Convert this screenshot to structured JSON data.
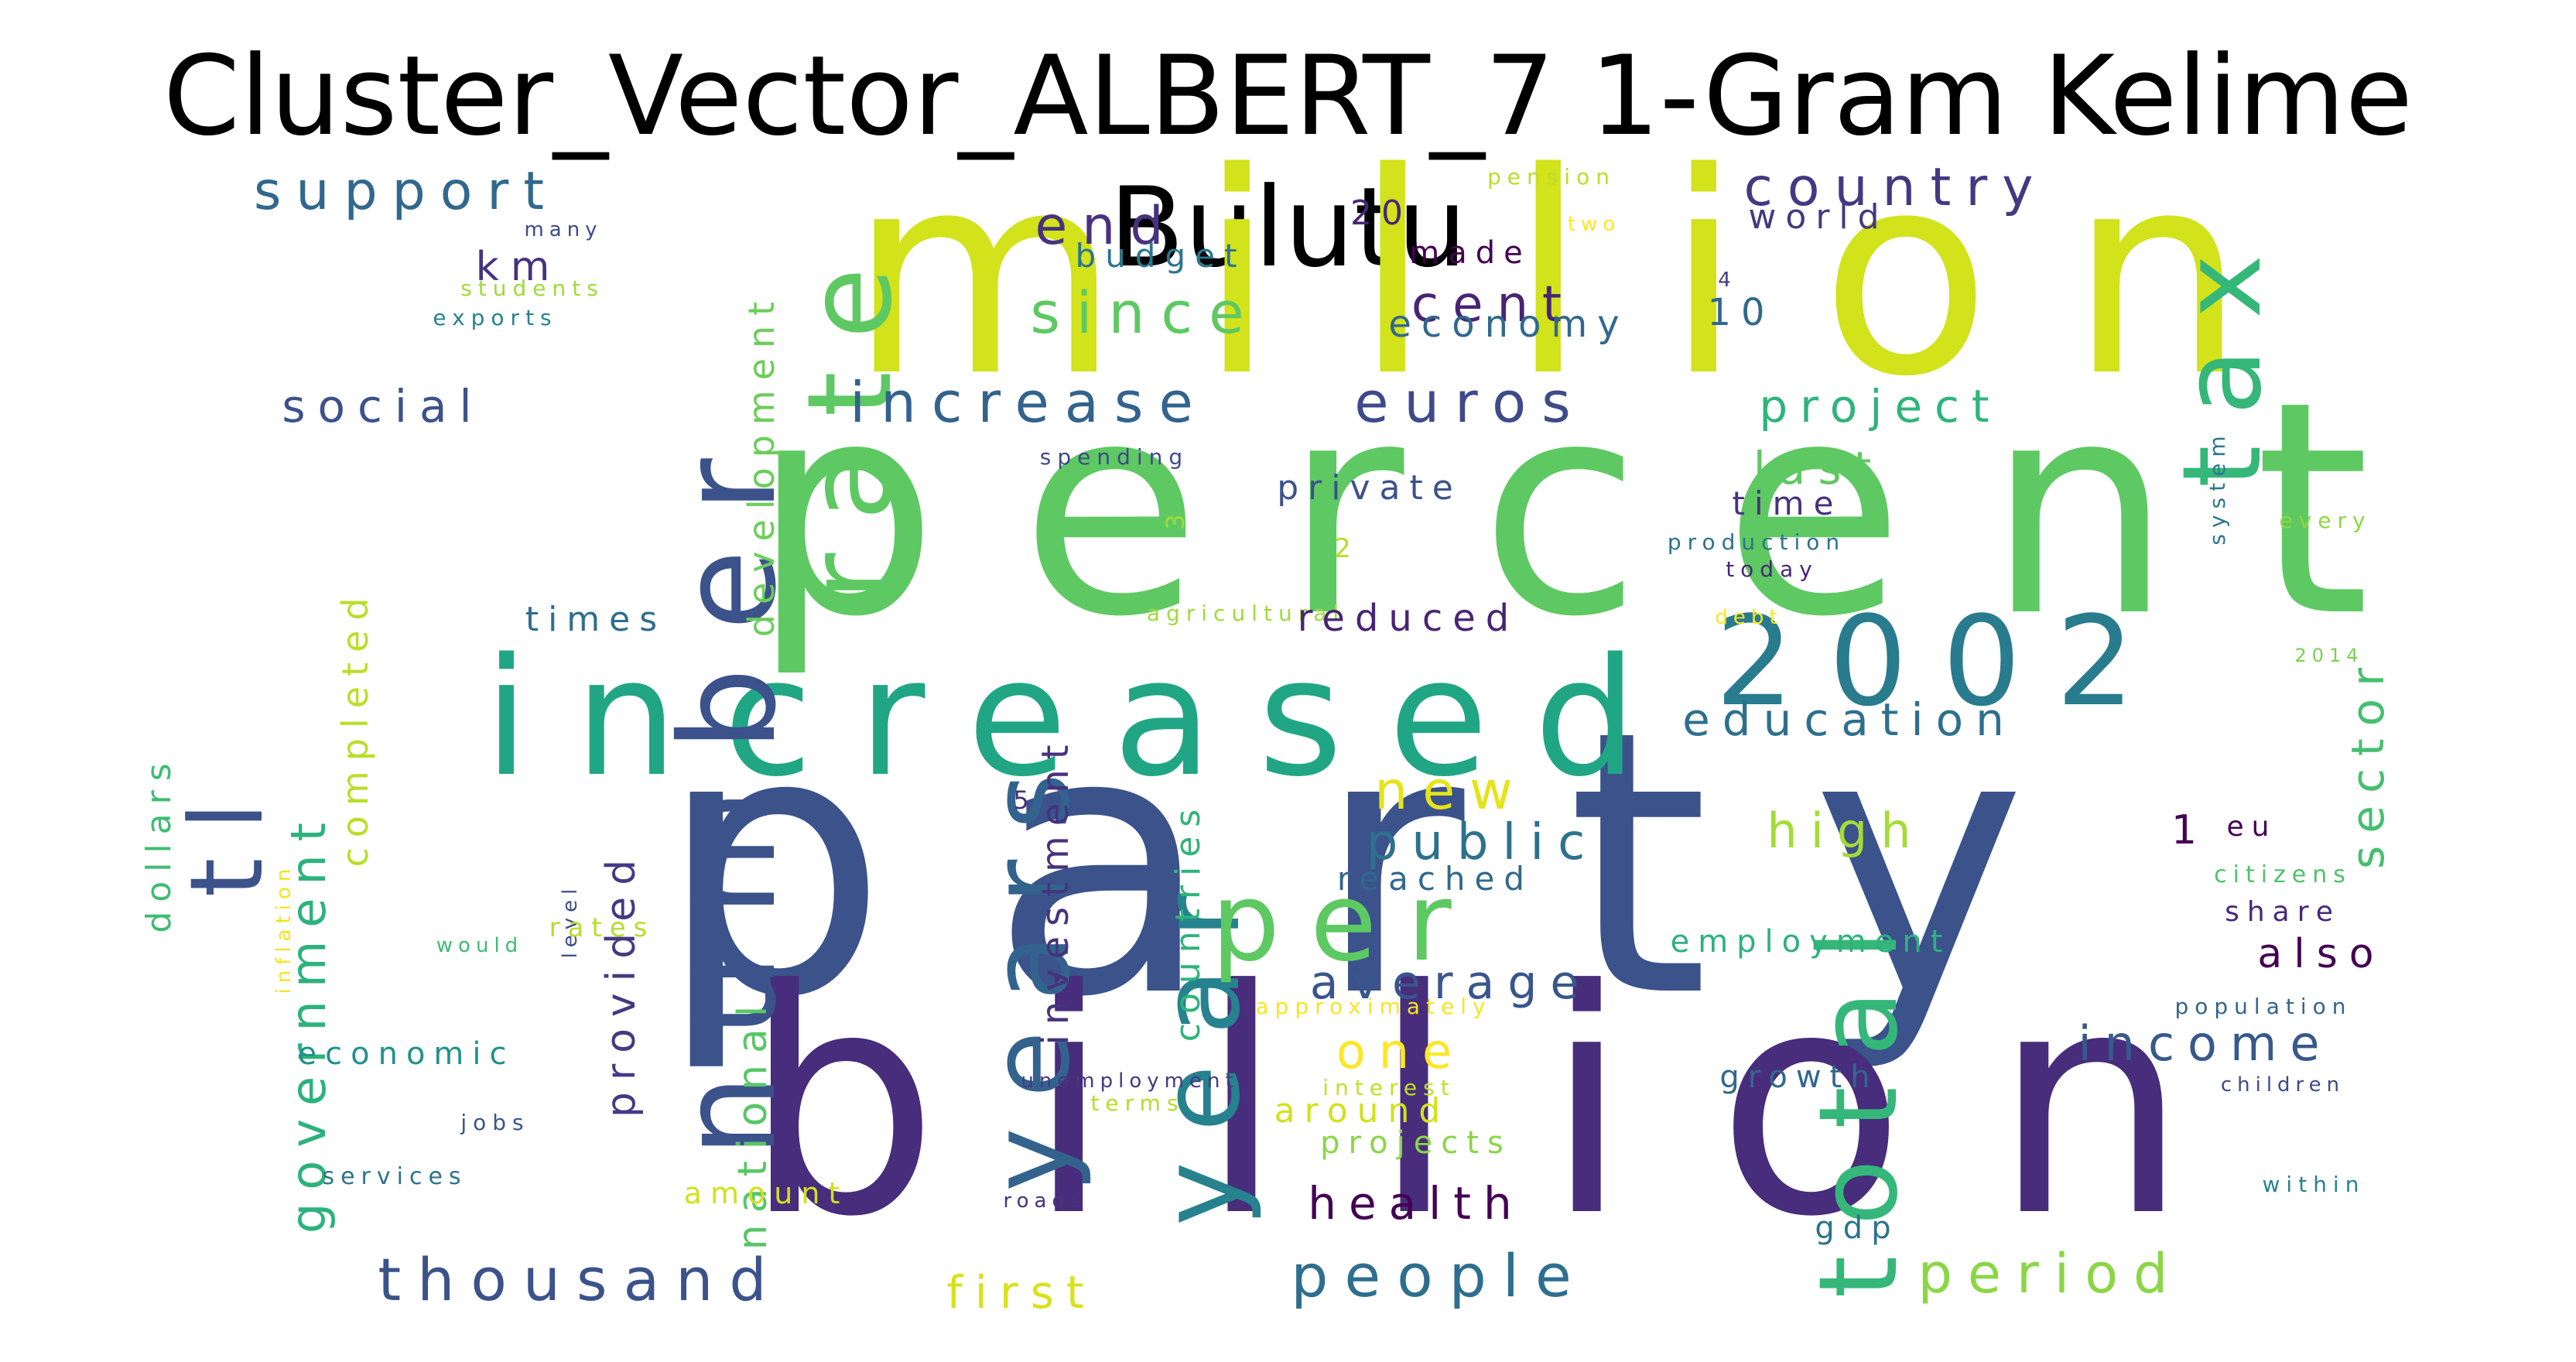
{
  "title": "Cluster_Vector_ALBERT_7 1-Gram Kelime Bulutu",
  "words": [
    {
      "text": "million",
      "color": "#d2e21b"
    },
    {
      "text": "percent",
      "color": "#5ec962"
    },
    {
      "text": "party",
      "color": "#3b528b"
    },
    {
      "text": "billion",
      "color": "#472d7b"
    },
    {
      "text": "increased",
      "color": "#21a685"
    },
    {
      "text": "2002",
      "color": "#287c8e"
    },
    {
      "text": "number",
      "color": "#3b528b"
    },
    {
      "text": "rate",
      "color": "#5ec962"
    },
    {
      "text": "years",
      "color": "#33638d"
    },
    {
      "text": "year",
      "color": "#26828e"
    },
    {
      "text": "per",
      "color": "#5ec962"
    },
    {
      "text": "total",
      "color": "#35b779"
    },
    {
      "text": "tax",
      "color": "#35b779"
    },
    {
      "text": "tl",
      "color": "#3b528b"
    },
    {
      "text": "support",
      "color": "#31688e"
    },
    {
      "text": "end",
      "color": "#46327e"
    },
    {
      "text": "km",
      "color": "#46327e"
    },
    {
      "text": "budget",
      "color": "#2a768e"
    },
    {
      "text": "since",
      "color": "#5ec962"
    },
    {
      "text": "cent",
      "color": "#482475"
    },
    {
      "text": "economy",
      "color": "#31688e"
    },
    {
      "text": "country",
      "color": "#453882"
    },
    {
      "text": "world",
      "color": "#453882"
    },
    {
      "text": "20",
      "color": "#482878"
    },
    {
      "text": "10",
      "color": "#31688e"
    },
    {
      "text": "made",
      "color": "#440154"
    },
    {
      "text": "many",
      "color": "#3e4a89"
    },
    {
      "text": "two",
      "color": "#fde725"
    },
    {
      "text": "pension",
      "color": "#b8de29"
    },
    {
      "text": "students",
      "color": "#a0da39"
    },
    {
      "text": "exports",
      "color": "#26828e"
    },
    {
      "text": "4",
      "color": "#453882"
    },
    {
      "text": "social",
      "color": "#3b528b"
    },
    {
      "text": "increase",
      "color": "#33638d"
    },
    {
      "text": "euros",
      "color": "#3e4a89"
    },
    {
      "text": "project",
      "color": "#2fb47c"
    },
    {
      "text": "development",
      "color": "#6ccd5a"
    },
    {
      "text": "last",
      "color": "#5ec962"
    },
    {
      "text": "time",
      "color": "#46327e"
    },
    {
      "text": "system",
      "color": "#2a788e"
    },
    {
      "text": "spending",
      "color": "#3e4a89"
    },
    {
      "text": "private",
      "color": "#3b528b"
    },
    {
      "text": "3",
      "color": "#a0da39"
    },
    {
      "text": "2",
      "color": "#b8de29"
    },
    {
      "text": "production",
      "color": "#2c728e"
    },
    {
      "text": "every",
      "color": "#8fd744"
    },
    {
      "text": "today",
      "color": "#482878"
    },
    {
      "text": "times",
      "color": "#2e6e8e"
    },
    {
      "text": "agricultural",
      "color": "#a0da39"
    },
    {
      "text": "reduced",
      "color": "#482475"
    },
    {
      "text": "debt",
      "color": "#fde725"
    },
    {
      "text": "completed",
      "color": "#bade28"
    },
    {
      "text": "government",
      "color": "#2db27d"
    },
    {
      "text": "dollars",
      "color": "#3fbc73"
    },
    {
      "text": "education",
      "color": "#2d708e"
    },
    {
      "text": "sector",
      "color": "#45bf70"
    },
    {
      "text": "2014",
      "color": "#7ad151"
    },
    {
      "text": "provided",
      "color": "#443983"
    },
    {
      "text": "national",
      "color": "#58c765"
    },
    {
      "text": "investment",
      "color": "#46327e"
    },
    {
      "text": "countries",
      "color": "#2fb47c"
    },
    {
      "text": "new",
      "color": "#e5e419"
    },
    {
      "text": "5",
      "color": "#46327e"
    },
    {
      "text": "public",
      "color": "#2c728e"
    },
    {
      "text": "high",
      "color": "#a5db36"
    },
    {
      "text": "1",
      "color": "#440154"
    },
    {
      "text": "eu",
      "color": "#440154"
    },
    {
      "text": "reached",
      "color": "#31688e"
    },
    {
      "text": "citizens",
      "color": "#4ec36b"
    },
    {
      "text": "share",
      "color": "#482878"
    },
    {
      "text": "inflation",
      "color": "#f1e51d"
    },
    {
      "text": "level",
      "color": "#3e4a89"
    },
    {
      "text": "would",
      "color": "#3dbc74"
    },
    {
      "text": "rates",
      "color": "#b5de2b"
    },
    {
      "text": "employment",
      "color": "#2db27d"
    },
    {
      "text": "also",
      "color": "#440154"
    },
    {
      "text": "average",
      "color": "#39568c"
    },
    {
      "text": "approximately",
      "color": "#f6e620"
    },
    {
      "text": "population",
      "color": "#32648e"
    },
    {
      "text": "economic",
      "color": "#21918c"
    },
    {
      "text": "one",
      "color": "#fde725"
    },
    {
      "text": "income",
      "color": "#38598c"
    },
    {
      "text": "unemployment",
      "color": "#453882"
    },
    {
      "text": "interest",
      "color": "#c2df23"
    },
    {
      "text": "growth",
      "color": "#31688e"
    },
    {
      "text": "children",
      "color": "#3e4989"
    },
    {
      "text": "terms",
      "color": "#b5de2b"
    },
    {
      "text": "around",
      "color": "#d2e21b"
    },
    {
      "text": "jobs",
      "color": "#39568c"
    },
    {
      "text": "projects",
      "color": "#8bd646"
    },
    {
      "text": "services",
      "color": "#2c728e"
    },
    {
      "text": "amount",
      "color": "#d0e11c"
    },
    {
      "text": "roads",
      "color": "#46327e"
    },
    {
      "text": "health",
      "color": "#440154"
    },
    {
      "text": "within",
      "color": "#25848e"
    },
    {
      "text": "gdp",
      "color": "#2c728e"
    },
    {
      "text": "thousand",
      "color": "#3b528b"
    },
    {
      "text": "first",
      "color": "#d8e219"
    },
    {
      "text": "people",
      "color": "#2e6e8e"
    },
    {
      "text": "period",
      "color": "#8bd646"
    }
  ]
}
